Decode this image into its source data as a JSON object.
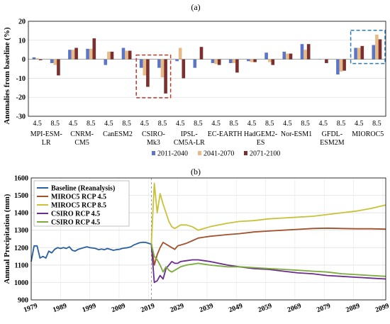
{
  "panel_labels": {
    "a": "(a)",
    "b": "(b)"
  },
  "legend_b_title": "",
  "chart_data": [
    {
      "type": "bar",
      "panel": "(a)",
      "ylabel": "Anomalies from baseline (%)",
      "ylim": [
        -30,
        20
      ],
      "yticks": [
        20,
        10,
        0,
        -10,
        -20,
        -30
      ],
      "grid": true,
      "rcp_labels": [
        "4.5",
        "8.5"
      ],
      "model_labels": [
        "MPI-ESM-\nLR",
        "CNRM-\nCM5",
        "CanESM2",
        "CSIRO-\nMk3",
        "IPSL-\nCM5A-LR",
        "EC-EARTH",
        "HadGEM2-\nES",
        "Nor-ESM1",
        "GFDL-\nESM2M",
        "MIOROC5"
      ],
      "categories": [
        "MPI-ESM-LR 4.5",
        "MPI-ESM-LR 8.5",
        "CNRM-CM5 4.5",
        "CNRM-CM5 8.5",
        "CanESM2 4.5",
        "CanESM2 8.5",
        "CSIRO-Mk3 4.5",
        "CSIRO-Mk3 8.5",
        "IPSL-CM5A-LR 4.5",
        "IPSL-CM5A-LR 8.5",
        "EC-EARTH 4.5",
        "EC-EARTH 8.5",
        "HadGEM2-ES 4.5",
        "HadGEM2-ES 8.5",
        "Nor-ESM1 4.5",
        "Nor-ESM1 8.5",
        "GFDL-ESM2M 4.5",
        "GFDL-ESM2M 8.5",
        "MIOROC5 4.5",
        "MIOROC5 8.5"
      ],
      "series": [
        {
          "name": "2011-2040",
          "color": "#5b75c8",
          "values": [
            1,
            -2,
            5,
            5.5,
            -3,
            6,
            -4.5,
            -4.5,
            -1,
            -4.5,
            -2,
            -2,
            -1,
            3.5,
            4,
            8,
            0,
            -8,
            6,
            7.5
          ]
        },
        {
          "name": "2041-2070",
          "color": "#e6bb87",
          "values": [
            0.5,
            -3,
            5,
            5.5,
            4,
            4.5,
            -8.5,
            -9.5,
            6,
            0,
            -2.5,
            -2,
            -1.5,
            -1.5,
            3,
            5,
            0,
            -6.5,
            6,
            13
          ]
        },
        {
          "name": "2071-2100",
          "color": "#7b2f2f",
          "values": [
            -0.5,
            -8.5,
            6,
            11,
            4,
            4.5,
            -14.5,
            -18,
            -10,
            6.5,
            -3,
            -7,
            -1.5,
            -3,
            3,
            8,
            -2,
            -6,
            7,
            10.5
          ]
        }
      ],
      "highlight_boxes": [
        {
          "group": "CSIRO-Mk3",
          "color": "#c0392b",
          "style": "dashed"
        },
        {
          "group": "MIOROC5",
          "color": "#2b7bbd",
          "style": "dashed"
        }
      ]
    },
    {
      "type": "line",
      "panel": "(b)",
      "ylabel": "Annual Precipitation (mm)",
      "ylim": [
        900,
        1600
      ],
      "yticks": [
        900,
        1000,
        1100,
        1200,
        1300,
        1400,
        1500,
        1600
      ],
      "xlim": [
        1979,
        2100
      ],
      "xticks": [
        1979,
        1989,
        1999,
        2009,
        2019,
        2029,
        2039,
        2049,
        2059,
        2069,
        2079,
        2089,
        2099
      ],
      "grid": true,
      "legend_position": "top-left",
      "vertical_marker_x": 2020,
      "series": [
        {
          "name": "Baseline (Reanalysis)",
          "color": "#2c5fa0",
          "x": [
            1979,
            1980,
            1981,
            1982,
            1983,
            1984,
            1985,
            1986,
            1987,
            1988,
            1989,
            1990,
            1991,
            1992,
            1993,
            1994,
            1995,
            1996,
            1997,
            1998,
            1999,
            2000,
            2001,
            2002,
            2003,
            2004,
            2005,
            2006,
            2007,
            2008,
            2009,
            2010,
            2011,
            2012,
            2013,
            2014,
            2015,
            2016,
            2017,
            2018,
            2019,
            2020
          ],
          "y": [
            1120,
            1210,
            1210,
            1140,
            1150,
            1140,
            1180,
            1170,
            1190,
            1200,
            1195,
            1200,
            1195,
            1205,
            1185,
            1180,
            1190,
            1195,
            1200,
            1205,
            1200,
            1198,
            1195,
            1188,
            1192,
            1188,
            1195,
            1190,
            1185,
            1188,
            1190,
            1195,
            1198,
            1200,
            1205,
            1215,
            1222,
            1228,
            1231,
            1230,
            1225,
            1220
          ]
        },
        {
          "name": "MIROC5 RCP 4.5",
          "color": "#a0522d",
          "x": [
            2020,
            2021,
            2022,
            2023,
            2024,
            2025,
            2026,
            2027,
            2028,
            2029,
            2030,
            2032,
            2034,
            2036,
            2038,
            2040,
            2043,
            2046,
            2050,
            2055,
            2060,
            2065,
            2070,
            2075,
            2080,
            2085,
            2090,
            2095,
            2100
          ],
          "y": [
            1230,
            1100,
            1160,
            1200,
            1230,
            1220,
            1210,
            1200,
            1190,
            1210,
            1215,
            1225,
            1240,
            1255,
            1260,
            1265,
            1270,
            1275,
            1280,
            1290,
            1295,
            1300,
            1305,
            1310,
            1312,
            1310,
            1308,
            1308,
            1306
          ]
        },
        {
          "name": "MIROC5 RCP 8.5",
          "color": "#c8c23a",
          "x": [
            2020,
            2021,
            2022,
            2023,
            2024,
            2025,
            2026,
            2027,
            2028,
            2029,
            2030,
            2032,
            2034,
            2036,
            2038,
            2040,
            2043,
            2046,
            2050,
            2055,
            2060,
            2065,
            2070,
            2075,
            2080,
            2085,
            2090,
            2095,
            2100
          ],
          "y": [
            1220,
            1570,
            1400,
            1510,
            1450,
            1400,
            1350,
            1320,
            1310,
            1320,
            1330,
            1330,
            1320,
            1300,
            1310,
            1320,
            1330,
            1340,
            1350,
            1355,
            1365,
            1370,
            1375,
            1380,
            1390,
            1400,
            1410,
            1425,
            1445
          ]
        },
        {
          "name": "CSIRO RCP 4.5",
          "color": "#6a2c8e",
          "x": [
            2020,
            2021,
            2022,
            2023,
            2024,
            2025,
            2026,
            2027,
            2028,
            2029,
            2030,
            2032,
            2034,
            2036,
            2038,
            2040,
            2043,
            2046,
            2050,
            2055,
            2060,
            2065,
            2070,
            2075,
            2080,
            2085,
            2090,
            2095,
            2100
          ],
          "y": [
            1220,
            1000,
            1010,
            1040,
            1020,
            1080,
            1100,
            1120,
            1110,
            1110,
            1120,
            1125,
            1130,
            1130,
            1125,
            1120,
            1110,
            1100,
            1090,
            1080,
            1075,
            1065,
            1055,
            1050,
            1040,
            1035,
            1030,
            1025,
            1020
          ]
        },
        {
          "name": "CSIRO RCP 4.5",
          "color": "#7cab3c",
          "x": [
            2020,
            2021,
            2022,
            2023,
            2024,
            2025,
            2026,
            2027,
            2028,
            2029,
            2030,
            2032,
            2034,
            2036,
            2038,
            2040,
            2043,
            2046,
            2050,
            2055,
            2060,
            2065,
            2070,
            2075,
            2080,
            2085,
            2090,
            2095,
            2100
          ],
          "y": [
            1220,
            1150,
            1130,
            1100,
            1060,
            1090,
            1070,
            1060,
            1070,
            1080,
            1090,
            1100,
            1105,
            1110,
            1105,
            1100,
            1095,
            1090,
            1090,
            1085,
            1080,
            1075,
            1070,
            1065,
            1060,
            1050,
            1045,
            1040,
            1035
          ]
        }
      ]
    }
  ]
}
